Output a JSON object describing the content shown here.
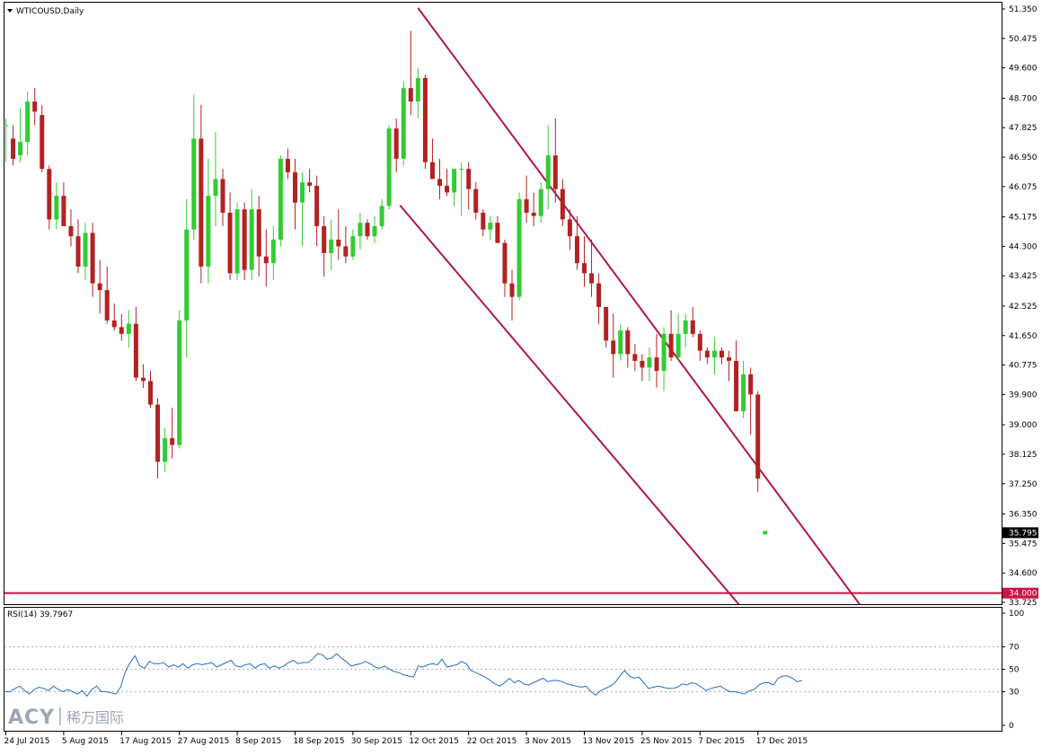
{
  "chart_data": [
    {
      "type": "candlestick",
      "title": "WTICOUSD,Daily",
      "symbol": "WTICOUSD",
      "timeframe": "Daily",
      "ylim": [
        33.725,
        51.35
      ],
      "y_ticks": [
        "51.350",
        "50.475",
        "49.600",
        "48.700",
        "47.825",
        "46.950",
        "46.075",
        "45.175",
        "44.300",
        "43.425",
        "42.525",
        "41.650",
        "40.775",
        "39.900",
        "39.000",
        "38.125",
        "37.250",
        "36.350",
        "35.475",
        "34.600",
        "33.725"
      ],
      "x_ticks": [
        "24 Jul 2015",
        "5 Aug 2015",
        "17 Aug 2015",
        "27 Aug 2015",
        "8 Sep 2015",
        "18 Sep 2015",
        "30 Sep 2015",
        "12 Oct 2015",
        "22 Oct 2015",
        "3 Nov 2015",
        "13 Nov 2015",
        "25 Nov 2015",
        "7 Dec 2015",
        "17 Dec 2015"
      ],
      "x_tick_bar_index": [
        0,
        8,
        16,
        24,
        32,
        40,
        48,
        56,
        64,
        72,
        80,
        88,
        96,
        104
      ],
      "current_price": "35.795",
      "support_level": 34.0,
      "support_label": "34.000",
      "colors": {
        "bull": "#33cc33",
        "bear": "#b22222",
        "support": "#cc1144",
        "channel": "#b0184a"
      },
      "channel_lines": [
        {
          "from": {
            "bar": 57.0,
            "price": 51.38
          },
          "to": {
            "bar": 118.2,
            "price": 33.63
          }
        },
        {
          "from": {
            "bar": 54.5,
            "price": 45.52
          },
          "to": {
            "bar": 101.5,
            "price": 33.63
          }
        }
      ],
      "candles": [
        {
          "o": 47.9,
          "h": 48.1,
          "l": 46.8,
          "c": 47.9
        },
        {
          "o": 47.5,
          "h": 47.9,
          "l": 46.7,
          "c": 46.9
        },
        {
          "o": 47.0,
          "h": 48.4,
          "l": 46.8,
          "c": 47.4
        },
        {
          "o": 47.4,
          "h": 48.9,
          "l": 47.0,
          "c": 48.6
        },
        {
          "o": 48.6,
          "h": 49.0,
          "l": 47.9,
          "c": 48.3
        },
        {
          "o": 48.2,
          "h": 48.5,
          "l": 46.5,
          "c": 46.6
        },
        {
          "o": 46.6,
          "h": 46.7,
          "l": 44.8,
          "c": 45.1
        },
        {
          "o": 45.1,
          "h": 46.2,
          "l": 44.8,
          "c": 45.8
        },
        {
          "o": 45.8,
          "h": 46.2,
          "l": 44.9,
          "c": 44.9
        },
        {
          "o": 44.9,
          "h": 45.4,
          "l": 44.3,
          "c": 44.6
        },
        {
          "o": 44.6,
          "h": 45.1,
          "l": 43.5,
          "c": 43.7
        },
        {
          "o": 43.7,
          "h": 45.0,
          "l": 43.3,
          "c": 44.7
        },
        {
          "o": 44.7,
          "h": 45.0,
          "l": 42.8,
          "c": 43.2
        },
        {
          "o": 43.2,
          "h": 43.9,
          "l": 42.3,
          "c": 43.0
        },
        {
          "o": 43.0,
          "h": 43.7,
          "l": 42.0,
          "c": 42.1
        },
        {
          "o": 42.1,
          "h": 42.6,
          "l": 41.8,
          "c": 41.9
        },
        {
          "o": 41.9,
          "h": 42.3,
          "l": 41.5,
          "c": 41.7
        },
        {
          "o": 41.7,
          "h": 42.4,
          "l": 41.3,
          "c": 42.0
        },
        {
          "o": 42.0,
          "h": 42.5,
          "l": 40.3,
          "c": 40.4
        },
        {
          "o": 40.4,
          "h": 40.8,
          "l": 40.1,
          "c": 40.3
        },
        {
          "o": 40.3,
          "h": 40.6,
          "l": 39.5,
          "c": 39.6
        },
        {
          "o": 39.6,
          "h": 39.8,
          "l": 37.4,
          "c": 37.9
        },
        {
          "o": 37.9,
          "h": 38.9,
          "l": 37.6,
          "c": 38.6
        },
        {
          "o": 38.6,
          "h": 39.5,
          "l": 38.0,
          "c": 38.4
        },
        {
          "o": 38.4,
          "h": 42.4,
          "l": 38.3,
          "c": 42.1
        },
        {
          "o": 42.1,
          "h": 45.7,
          "l": 41.0,
          "c": 44.8
        },
        {
          "o": 44.8,
          "h": 48.8,
          "l": 44.5,
          "c": 47.5
        },
        {
          "o": 47.5,
          "h": 48.5,
          "l": 43.2,
          "c": 43.7
        },
        {
          "o": 43.7,
          "h": 46.9,
          "l": 43.2,
          "c": 45.8
        },
        {
          "o": 45.8,
          "h": 47.7,
          "l": 44.9,
          "c": 46.3
        },
        {
          "o": 46.3,
          "h": 46.6,
          "l": 44.9,
          "c": 45.3
        },
        {
          "o": 45.3,
          "h": 45.9,
          "l": 43.3,
          "c": 43.5
        },
        {
          "o": 43.5,
          "h": 45.6,
          "l": 43.3,
          "c": 45.4
        },
        {
          "o": 45.4,
          "h": 45.6,
          "l": 43.3,
          "c": 43.6
        },
        {
          "o": 43.6,
          "h": 46.0,
          "l": 43.3,
          "c": 45.4
        },
        {
          "o": 45.4,
          "h": 45.8,
          "l": 43.4,
          "c": 44.0
        },
        {
          "o": 44.0,
          "h": 44.8,
          "l": 43.1,
          "c": 43.8
        },
        {
          "o": 43.8,
          "h": 44.9,
          "l": 43.3,
          "c": 44.5
        },
        {
          "o": 44.5,
          "h": 47.0,
          "l": 44.3,
          "c": 46.9
        },
        {
          "o": 46.9,
          "h": 47.2,
          "l": 46.3,
          "c": 46.5
        },
        {
          "o": 46.5,
          "h": 46.9,
          "l": 44.8,
          "c": 45.6
        },
        {
          "o": 45.6,
          "h": 46.5,
          "l": 44.3,
          "c": 46.2
        },
        {
          "o": 46.2,
          "h": 46.6,
          "l": 45.9,
          "c": 46.1
        },
        {
          "o": 46.1,
          "h": 46.4,
          "l": 44.3,
          "c": 44.9
        },
        {
          "o": 44.9,
          "h": 45.2,
          "l": 43.4,
          "c": 44.1
        },
        {
          "o": 44.1,
          "h": 45.1,
          "l": 43.6,
          "c": 44.5
        },
        {
          "o": 44.5,
          "h": 45.4,
          "l": 43.9,
          "c": 44.3
        },
        {
          "o": 44.3,
          "h": 44.9,
          "l": 43.8,
          "c": 44.0
        },
        {
          "o": 44.0,
          "h": 44.8,
          "l": 43.9,
          "c": 44.6
        },
        {
          "o": 44.6,
          "h": 45.3,
          "l": 44.2,
          "c": 45.0
        },
        {
          "o": 45.0,
          "h": 45.1,
          "l": 44.5,
          "c": 44.6
        },
        {
          "o": 44.6,
          "h": 45.2,
          "l": 44.4,
          "c": 44.9
        },
        {
          "o": 44.9,
          "h": 45.7,
          "l": 44.8,
          "c": 45.5
        },
        {
          "o": 45.5,
          "h": 47.9,
          "l": 45.4,
          "c": 47.8
        },
        {
          "o": 47.8,
          "h": 48.1,
          "l": 46.5,
          "c": 46.9
        },
        {
          "o": 46.9,
          "h": 49.2,
          "l": 46.7,
          "c": 49.0
        },
        {
          "o": 49.0,
          "h": 50.7,
          "l": 48.2,
          "c": 48.6
        },
        {
          "o": 48.6,
          "h": 49.6,
          "l": 48.1,
          "c": 49.3
        },
        {
          "o": 49.3,
          "h": 49.4,
          "l": 46.6,
          "c": 46.8
        },
        {
          "o": 46.8,
          "h": 47.5,
          "l": 46.4,
          "c": 46.3
        },
        {
          "o": 46.3,
          "h": 46.9,
          "l": 45.7,
          "c": 46.1
        },
        {
          "o": 46.1,
          "h": 46.6,
          "l": 45.8,
          "c": 45.9
        },
        {
          "o": 45.9,
          "h": 46.6,
          "l": 45.5,
          "c": 46.6
        },
        {
          "o": 46.6,
          "h": 46.8,
          "l": 45.2,
          "c": 46.6
        },
        {
          "o": 46.6,
          "h": 46.8,
          "l": 45.4,
          "c": 46.0
        },
        {
          "o": 46.0,
          "h": 46.2,
          "l": 45.1,
          "c": 45.3
        },
        {
          "o": 45.3,
          "h": 45.4,
          "l": 44.6,
          "c": 44.8
        },
        {
          "o": 44.8,
          "h": 45.2,
          "l": 44.5,
          "c": 45.0
        },
        {
          "o": 45.0,
          "h": 45.2,
          "l": 44.4,
          "c": 44.4
        },
        {
          "o": 44.4,
          "h": 44.5,
          "l": 42.8,
          "c": 43.2
        },
        {
          "o": 43.2,
          "h": 43.6,
          "l": 42.1,
          "c": 42.8
        },
        {
          "o": 42.8,
          "h": 45.9,
          "l": 42.7,
          "c": 45.7
        },
        {
          "o": 45.7,
          "h": 46.4,
          "l": 45.0,
          "c": 45.3
        },
        {
          "o": 45.3,
          "h": 45.9,
          "l": 44.9,
          "c": 45.2
        },
        {
          "o": 45.2,
          "h": 46.2,
          "l": 45.0,
          "c": 46.0
        },
        {
          "o": 46.0,
          "h": 47.9,
          "l": 45.4,
          "c": 47.0
        },
        {
          "o": 47.0,
          "h": 48.1,
          "l": 45.6,
          "c": 46.0
        },
        {
          "o": 46.0,
          "h": 46.3,
          "l": 44.9,
          "c": 45.1
        },
        {
          "o": 45.1,
          "h": 45.4,
          "l": 44.2,
          "c": 44.6
        },
        {
          "o": 44.6,
          "h": 45.2,
          "l": 43.6,
          "c": 43.8
        },
        {
          "o": 43.8,
          "h": 44.6,
          "l": 43.1,
          "c": 43.5
        },
        {
          "o": 43.5,
          "h": 44.5,
          "l": 42.8,
          "c": 43.2
        },
        {
          "o": 43.2,
          "h": 43.5,
          "l": 42.0,
          "c": 42.5
        },
        {
          "o": 42.5,
          "h": 42.5,
          "l": 41.3,
          "c": 41.5
        },
        {
          "o": 41.5,
          "h": 42.3,
          "l": 40.4,
          "c": 41.1
        },
        {
          "o": 41.1,
          "h": 42.0,
          "l": 40.9,
          "c": 41.8
        },
        {
          "o": 41.8,
          "h": 41.9,
          "l": 40.7,
          "c": 41.1
        },
        {
          "o": 41.1,
          "h": 41.4,
          "l": 40.6,
          "c": 40.9
        },
        {
          "o": 40.9,
          "h": 41.1,
          "l": 40.3,
          "c": 40.7
        },
        {
          "o": 40.7,
          "h": 41.3,
          "l": 40.3,
          "c": 41.0
        },
        {
          "o": 41.0,
          "h": 41.7,
          "l": 40.1,
          "c": 40.6
        },
        {
          "o": 40.6,
          "h": 41.9,
          "l": 40.0,
          "c": 41.7
        },
        {
          "o": 41.7,
          "h": 42.4,
          "l": 40.9,
          "c": 41.0
        },
        {
          "o": 41.0,
          "h": 42.3,
          "l": 40.9,
          "c": 41.7
        },
        {
          "o": 41.7,
          "h": 42.3,
          "l": 41.3,
          "c": 42.1
        },
        {
          "o": 42.1,
          "h": 42.5,
          "l": 41.6,
          "c": 41.7
        },
        {
          "o": 41.7,
          "h": 41.8,
          "l": 40.9,
          "c": 41.2
        },
        {
          "o": 41.2,
          "h": 41.3,
          "l": 40.8,
          "c": 41.0
        },
        {
          "o": 41.0,
          "h": 41.6,
          "l": 40.5,
          "c": 41.2
        },
        {
          "o": 41.2,
          "h": 41.3,
          "l": 40.8,
          "c": 41.0
        },
        {
          "o": 41.0,
          "h": 41.2,
          "l": 40.3,
          "c": 40.9
        },
        {
          "o": 40.9,
          "h": 41.5,
          "l": 39.5,
          "c": 39.4
        },
        {
          "o": 39.4,
          "h": 40.9,
          "l": 39.2,
          "c": 40.5
        },
        {
          "o": 40.5,
          "h": 40.7,
          "l": 38.7,
          "c": 39.9
        },
        {
          "o": 39.9,
          "h": 40.0,
          "l": 37.0,
          "c": 37.4
        }
      ]
    },
    {
      "type": "line",
      "title": "RSI(14) 39.7967",
      "indicator": "RSI(14)",
      "last_value": "39.7967",
      "ylim": [
        0,
        100
      ],
      "y_ticks": [
        "100",
        "70",
        "50",
        "30",
        "0"
      ],
      "levels": [
        70,
        50,
        30
      ],
      "line_color": "#1e6fc8",
      "values": [
        30,
        30,
        33,
        35,
        31,
        28,
        32,
        34,
        33,
        31,
        35,
        32,
        30,
        32,
        30,
        28,
        31,
        26,
        32,
        35,
        30,
        30,
        29,
        28,
        34,
        48,
        56,
        62,
        53,
        51,
        57,
        55,
        55,
        56,
        52,
        54,
        52,
        55,
        51,
        54,
        55,
        54,
        55,
        56,
        52,
        54,
        56,
        58,
        53,
        52,
        54,
        55,
        51,
        54,
        55,
        51,
        53,
        51,
        53,
        56,
        58,
        55,
        56,
        56,
        59,
        64,
        63,
        59,
        60,
        64,
        60,
        57,
        53,
        54,
        55,
        57,
        55,
        52,
        51,
        53,
        50,
        48,
        47,
        45,
        44,
        43,
        53,
        52,
        54,
        55,
        54,
        59,
        52,
        53,
        54,
        57,
        55,
        49,
        47,
        45,
        43,
        40,
        37,
        35,
        38,
        42,
        38,
        40,
        37,
        36,
        38,
        40,
        42,
        39,
        40,
        40,
        39,
        37,
        36,
        35,
        34,
        35,
        30,
        27,
        31,
        33,
        35,
        38,
        44,
        49,
        44,
        42,
        43,
        38,
        33,
        34,
        35,
        34,
        33,
        33,
        34,
        37,
        36,
        38,
        37,
        34,
        31,
        33,
        34,
        35,
        32,
        30,
        30,
        29,
        28,
        31,
        32,
        36,
        38,
        38,
        36,
        42,
        44,
        44,
        42,
        39,
        40
      ]
    }
  ],
  "watermark": {
    "brand": "ACY",
    "cn": "稀万国际"
  }
}
